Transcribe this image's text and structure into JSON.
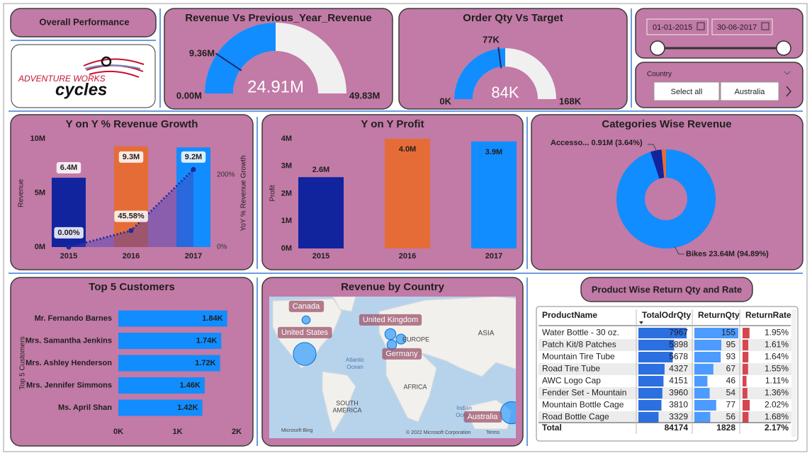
{
  "header": {
    "title": "Overall Performance",
    "logo": [
      "ADVENTURE WORKS",
      "cycles"
    ]
  },
  "revenue_gauge": {
    "title": "Revenue Vs Previous_Year_Revenue",
    "min": {
      "value": 0,
      "label": "0.00M"
    },
    "max": {
      "value": 49.83,
      "label": "49.83M"
    },
    "value": {
      "value": 24.91,
      "label": "24.91M"
    },
    "target": {
      "value": 9.36,
      "label": "9.36M"
    }
  },
  "order_gauge": {
    "title": "Order Qty Vs Target",
    "min": {
      "value": 0,
      "label": "0K"
    },
    "max": {
      "value": 168,
      "label": "168K"
    },
    "value": {
      "value": 84,
      "label": "84K"
    },
    "target": {
      "value": 77,
      "label": "77K"
    }
  },
  "date_slicer": {
    "start": "01-01-2015",
    "end": "30-06-2017"
  },
  "country_slicer": {
    "title": "Country",
    "options": [
      "Select all",
      "Australia"
    ]
  },
  "revenue_growth": {
    "title": "Y on Y % Revenue Growth",
    "y_label": "Revenue",
    "y2_label": "YoY % Revenue Growth",
    "categories": [
      "2015",
      "2016",
      "2017"
    ],
    "ylim": [
      0,
      10
    ],
    "yticks": [
      {
        "value": 0,
        "label": "0M"
      },
      {
        "value": 5,
        "label": "5M"
      },
      {
        "value": 10,
        "label": "10M"
      }
    ],
    "y2lim": [
      0,
      300
    ],
    "y2ticks": [
      {
        "value": 0,
        "label": "0%"
      },
      {
        "value": 200,
        "label": "200%"
      }
    ],
    "revenue": {
      "values": [
        6.4,
        9.3,
        9.2
      ],
      "value_labels": [
        "6.4M",
        "9.3M",
        "9.2M"
      ],
      "colors": [
        "#12239e",
        "#e66c37",
        "#118dff"
      ]
    },
    "growth": {
      "axis": "y2",
      "color": "#1a2aa0",
      "values": [
        0,
        45.58,
        215
      ],
      "value_labels": [
        "0.00%",
        "45.58%",
        null
      ]
    }
  },
  "profit": {
    "title": "Y on Y Profit",
    "y_label": "Profit",
    "categories": [
      "2015",
      "2016",
      "2017"
    ],
    "ylim": [
      0,
      4
    ],
    "yticks": [
      {
        "value": 0,
        "label": "0M"
      },
      {
        "value": 1,
        "label": "1M"
      },
      {
        "value": 2,
        "label": "2M"
      },
      {
        "value": 3,
        "label": "3M"
      },
      {
        "value": 4,
        "label": "4M"
      }
    ],
    "values": [
      2.6,
      4.0,
      3.9
    ],
    "value_labels": [
      "2.6M",
      "4.0M",
      "3.9M"
    ],
    "colors": [
      "#12239e",
      "#e66c37",
      "#118dff"
    ]
  },
  "category_revenue": {
    "title": "Categories Wise Revenue",
    "type": "donut",
    "slices": [
      {
        "name": "Bikes",
        "value": 23.64,
        "label": "Bikes 23.64M (94.89%)",
        "color": "#118dff"
      },
      {
        "name": "Accesso...",
        "value": 0.91,
        "label": "Accesso... 0.91M (3.64%)",
        "color": "#12239e"
      },
      {
        "name": null,
        "value": 0.36,
        "label": null,
        "color": "#e66c37"
      }
    ]
  },
  "top_customers": {
    "title": "Top 5 Customers",
    "y_label": "Top 5 Customers",
    "color": "#118dff",
    "categories": [
      "Mr. Fernando Barnes",
      "Mrs. Samantha Jenkins",
      "Mrs. Ashley Henderson",
      "Mrs. Jennifer Simmons",
      "Ms. April Shan"
    ],
    "values": [
      1840,
      1740,
      1720,
      1460,
      1420
    ],
    "value_labels": [
      "1.84K",
      "1.74K",
      "1.72K",
      "1.46K",
      "1.42K"
    ],
    "xlim": [
      0,
      2000
    ],
    "xticks": [
      {
        "value": 0,
        "label": "0K"
      },
      {
        "value": 1000,
        "label": "1K"
      },
      {
        "value": 2000,
        "label": "2K"
      }
    ]
  },
  "revenue_by_country": {
    "title": "Revenue by Country",
    "bubbles": [
      {
        "name": "United States",
        "value": 9.39
      },
      {
        "name": "Australia",
        "value": 9.06
      },
      {
        "name": "United Kingdom",
        "value": 3.39
      },
      {
        "name": "Germany",
        "value": 2.89
      },
      {
        "name": null,
        "value": 2.64
      },
      {
        "name": "Canada",
        "value": 1.98
      }
    ],
    "map_text": [
      "ASIA",
      "EUROPE",
      "Atlantic",
      "Ocean",
      "AFRICA",
      "SOUTH",
      "AMERICA",
      "Indian",
      "Ocean",
      "Microsoft Bing",
      "© 2022 Microsoft Corporation",
      "Terms"
    ]
  },
  "product_returns": {
    "title": "Product Wise Return Qty and Rate",
    "columns": [
      "ProductName",
      "TotalOdrQty",
      "ReturnQty",
      "ReturnRate"
    ],
    "rows": [
      [
        "Water Bottle - 30 oz.",
        7967,
        155,
        {
          "value": 1.95,
          "label": "1.95%"
        }
      ],
      [
        "Patch Kit/8 Patches",
        5898,
        95,
        {
          "value": 1.61,
          "label": "1.61%"
        }
      ],
      [
        "Mountain Tire Tube",
        5678,
        93,
        {
          "value": 1.64,
          "label": "1.64%"
        }
      ],
      [
        "Road Tire Tube",
        4327,
        67,
        {
          "value": 1.55,
          "label": "1.55%"
        }
      ],
      [
        "AWC Logo Cap",
        4151,
        46,
        {
          "value": 1.11,
          "label": "1.11%"
        }
      ],
      [
        "Fender Set - Mountain",
        3960,
        54,
        {
          "value": 1.36,
          "label": "1.36%"
        }
      ],
      [
        "Mountain Bottle Cage",
        3810,
        77,
        {
          "value": 2.02,
          "label": "2.02%"
        }
      ],
      [
        "Road Bottle Cage",
        3329,
        56,
        {
          "value": 1.68,
          "label": "1.68%"
        }
      ]
    ],
    "total": [
      "Total",
      84174,
      1828,
      {
        "value": 2.17,
        "label": "2.17%"
      }
    ]
  }
}
